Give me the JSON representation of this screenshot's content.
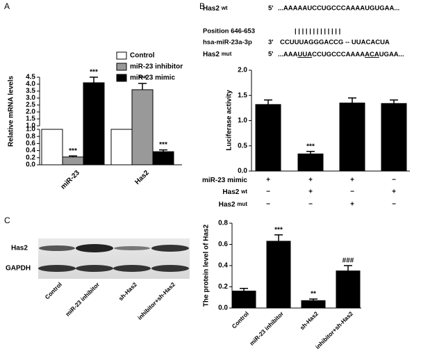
{
  "panel_labels": [
    "A",
    "B",
    "C"
  ],
  "sequences": {
    "wt": {
      "gene": "Has2",
      "tag": "wt",
      "end": "5'",
      "seq": "...AAAAAUCCUGCCCAAAAUGUGAA..."
    },
    "position": {
      "label": "Position 646-653",
      "pairing": "| | | | | |       | | | | | | |"
    },
    "mirna": {
      "name": "hsa-miR-23a-3p",
      "end": "3'",
      "seq": "CCUUUAGGGACCG -- UUACACUA"
    },
    "mut": {
      "gene": "Has2",
      "tag": "mut",
      "end": "5'",
      "seq_parts": [
        "...AAA",
        "UUA",
        "CCUGCCCAAAA",
        "ACA",
        "UGAA..."
      ]
    }
  },
  "blot": {
    "rows": [
      "Has2",
      "GAPDH"
    ]
  },
  "chart_data": [
    {
      "type": "bar",
      "ylabel": "Relative mRNA levels",
      "categories": [
        "miR-23",
        "Has2"
      ],
      "series": [
        {
          "name": "Control",
          "color": "#ffffff",
          "values": [
            1.0,
            1.0
          ]
        },
        {
          "name": "miR-23 inhibitor",
          "color": "#999999",
          "values": [
            0.22,
            3.6
          ],
          "errors": [
            0.03,
            0.45
          ],
          "annotations": [
            "***",
            "***"
          ]
        },
        {
          "name": "miR-23 mimic",
          "color": "#000000",
          "values": [
            4.1,
            0.37
          ],
          "errors": [
            0.4,
            0.05
          ],
          "annotations": [
            "***",
            "***"
          ]
        }
      ],
      "ylim_lower": [
        0,
        1
      ],
      "ylim_upper": [
        1,
        4.5
      ],
      "yticks_lower": [
        {
          "value": 0,
          "label": "0.0"
        },
        0.2,
        0.4,
        0.6,
        0.8,
        {
          "value": 1,
          "label": "1.0"
        }
      ],
      "yticks_upper": [
        {
          "value": 1,
          "label": "1.0"
        },
        1.5,
        {
          "value": 2,
          "label": "2.0"
        },
        2.5,
        {
          "value": 3,
          "label": "3.0"
        },
        3.5,
        {
          "value": 4,
          "label": "4.0"
        },
        4.5
      ],
      "legend": "top-right"
    },
    {
      "type": "bar",
      "ylabel": "Luciferase activity",
      "color": "#000000",
      "values": [
        1.32,
        0.34,
        1.35,
        1.34
      ],
      "errors": [
        0.09,
        0.05,
        0.1,
        0.07
      ],
      "annotations": [
        null,
        "***",
        null,
        null
      ],
      "ylim": [
        0,
        2
      ],
      "yticks": [
        {
          "value": 0,
          "label": "0.0"
        },
        0.5,
        {
          "value": 1,
          "label": "1.0"
        },
        1.5,
        {
          "value": 2,
          "label": "2.0"
        }
      ],
      "conditions": [
        {
          "name": "miR-23 mimic",
          "marks": [
            "+",
            "+",
            "+",
            "−"
          ]
        },
        {
          "name": "Has2",
          "tag": "wt",
          "marks": [
            "−",
            "+",
            "−",
            "+"
          ]
        },
        {
          "name": "Has2",
          "tag": "mut",
          "marks": [
            "−",
            "−",
            "+",
            "−"
          ]
        }
      ]
    },
    {
      "type": "bar",
      "ylabel": "The protein level of Has2",
      "color": "#000000",
      "categories": [
        "Control",
        "miR-23 inhibitor",
        "sh-Has2",
        "inhibitor+sh-Has2"
      ],
      "values": [
        0.16,
        0.63,
        0.07,
        0.35
      ],
      "errors": [
        0.025,
        0.06,
        0.015,
        0.05
      ],
      "annotations": [
        null,
        "***",
        "**",
        "###"
      ],
      "ylim": [
        0,
        0.8
      ],
      "yticks": [
        {
          "value": 0,
          "label": "0.0"
        },
        0.2,
        0.4,
        0.6,
        0.8
      ]
    }
  ]
}
